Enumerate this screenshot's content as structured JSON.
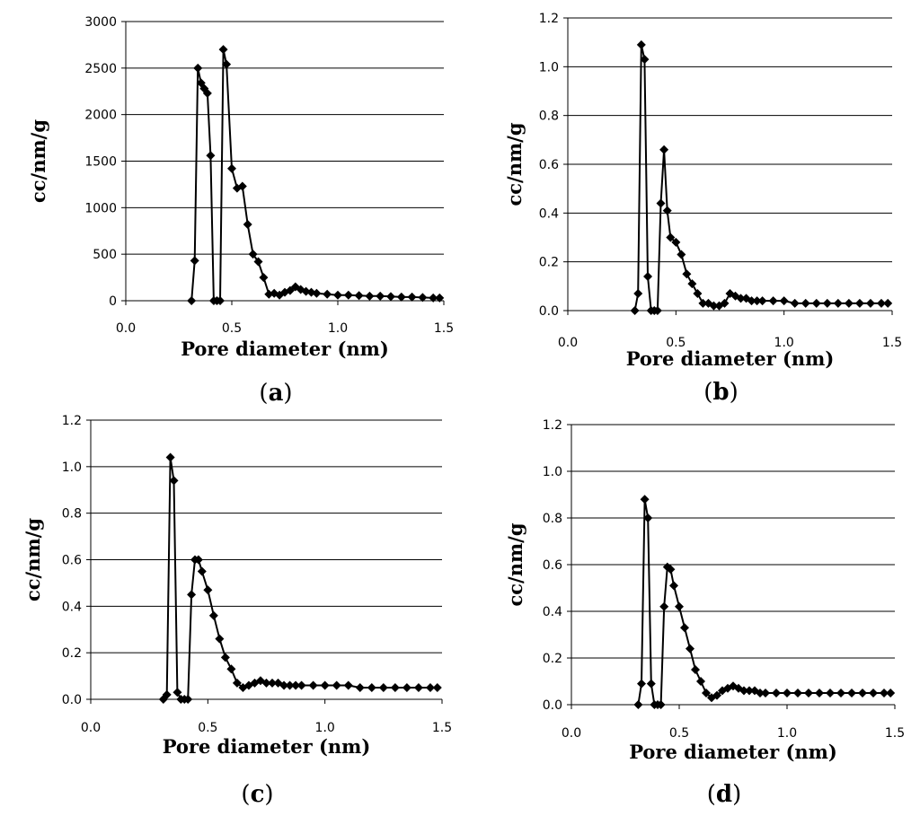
{
  "chart_data": [
    {
      "id": "a",
      "type": "line",
      "label": "a",
      "xlabel": "Pore diameter (nm)",
      "ylabel": "cc/nm/g",
      "xlim": [
        0,
        1.5
      ],
      "ylim": [
        0,
        3000
      ],
      "xticks": [
        "0.0",
        "0.5",
        "1.0",
        "1.5"
      ],
      "yticks": [
        "0",
        "500",
        "1000",
        "1500",
        "2000",
        "2500",
        "3000"
      ],
      "grid": "horizontal",
      "x": [
        0.31,
        0.325,
        0.34,
        0.355,
        0.37,
        0.385,
        0.4,
        0.415,
        0.43,
        0.445,
        0.46,
        0.475,
        0.5,
        0.525,
        0.55,
        0.575,
        0.6,
        0.625,
        0.65,
        0.675,
        0.7,
        0.725,
        0.75,
        0.775,
        0.8,
        0.825,
        0.85,
        0.875,
        0.9,
        0.95,
        1.0,
        1.05,
        1.1,
        1.15,
        1.2,
        1.25,
        1.3,
        1.35,
        1.4,
        1.45,
        1.48
      ],
      "y": [
        0,
        430,
        2500,
        2340,
        2280,
        2230,
        1560,
        0,
        0,
        0,
        2700,
        2540,
        1420,
        1210,
        1230,
        820,
        500,
        420,
        250,
        70,
        80,
        60,
        90,
        110,
        150,
        120,
        100,
        90,
        80,
        70,
        60,
        60,
        55,
        50,
        50,
        45,
        40,
        40,
        35,
        30,
        30
      ]
    },
    {
      "id": "b",
      "type": "line",
      "label": "b",
      "xlabel": "Pore diameter (nm)",
      "ylabel": "cc/nm/g",
      "xlim": [
        0,
        1.5
      ],
      "ylim": [
        0,
        1.2
      ],
      "xticks": [
        "0.0",
        "0.5",
        "1.0",
        "1.5"
      ],
      "yticks": [
        "0.0",
        "0.2",
        "0.4",
        "0.6",
        "0.8",
        "1.0",
        "1.2"
      ],
      "grid": "horizontal",
      "x": [
        0.31,
        0.325,
        0.34,
        0.355,
        0.37,
        0.385,
        0.4,
        0.415,
        0.43,
        0.445,
        0.46,
        0.475,
        0.5,
        0.525,
        0.55,
        0.575,
        0.6,
        0.625,
        0.65,
        0.675,
        0.7,
        0.725,
        0.75,
        0.775,
        0.8,
        0.825,
        0.85,
        0.875,
        0.9,
        0.95,
        1.0,
        1.05,
        1.1,
        1.15,
        1.2,
        1.25,
        1.3,
        1.35,
        1.4,
        1.45,
        1.48
      ],
      "y": [
        0.0,
        0.07,
        1.09,
        1.03,
        0.14,
        0.0,
        0.0,
        0.0,
        0.44,
        0.66,
        0.41,
        0.3,
        0.28,
        0.23,
        0.15,
        0.11,
        0.07,
        0.03,
        0.03,
        0.02,
        0.02,
        0.03,
        0.07,
        0.06,
        0.05,
        0.05,
        0.04,
        0.04,
        0.04,
        0.04,
        0.04,
        0.03,
        0.03,
        0.03,
        0.03,
        0.03,
        0.03,
        0.03,
        0.03,
        0.03,
        0.03
      ]
    },
    {
      "id": "c",
      "type": "line",
      "label": "c",
      "xlabel": "Pore diameter (nm)",
      "ylabel": "cc/nm/g",
      "xlim": [
        0,
        1.5
      ],
      "ylim": [
        0,
        1.2
      ],
      "xticks": [
        "0.0",
        "0.5",
        "1.0",
        "1.5"
      ],
      "yticks": [
        "0.0",
        "0.2",
        "0.4",
        "0.6",
        "0.8",
        "1.0",
        "1.2"
      ],
      "grid": "horizontal",
      "x": [
        0.31,
        0.325,
        0.34,
        0.355,
        0.37,
        0.385,
        0.4,
        0.415,
        0.43,
        0.445,
        0.46,
        0.475,
        0.5,
        0.525,
        0.55,
        0.575,
        0.6,
        0.625,
        0.65,
        0.675,
        0.7,
        0.725,
        0.75,
        0.775,
        0.8,
        0.825,
        0.85,
        0.875,
        0.9,
        0.95,
        1.0,
        1.05,
        1.1,
        1.15,
        1.2,
        1.25,
        1.3,
        1.35,
        1.4,
        1.45,
        1.48
      ],
      "y": [
        0.0,
        0.02,
        1.04,
        0.94,
        0.03,
        0.0,
        0.0,
        0.0,
        0.45,
        0.6,
        0.6,
        0.55,
        0.47,
        0.36,
        0.26,
        0.18,
        0.13,
        0.07,
        0.05,
        0.06,
        0.07,
        0.08,
        0.07,
        0.07,
        0.07,
        0.06,
        0.06,
        0.06,
        0.06,
        0.06,
        0.06,
        0.06,
        0.06,
        0.05,
        0.05,
        0.05,
        0.05,
        0.05,
        0.05,
        0.05,
        0.05
      ]
    },
    {
      "id": "d",
      "type": "line",
      "label": "d",
      "xlabel": "Pore diameter (nm)",
      "ylabel": "cc/nm/g",
      "xlim": [
        0,
        1.5
      ],
      "ylim": [
        0,
        1.2
      ],
      "xticks": [
        "0.0",
        "0.5",
        "1.0",
        "1.5"
      ],
      "yticks": [
        "0.0",
        "0.2",
        "0.4",
        "0.6",
        "0.8",
        "1.0",
        "1.2"
      ],
      "grid": "horizontal",
      "x": [
        0.31,
        0.325,
        0.34,
        0.355,
        0.37,
        0.385,
        0.4,
        0.415,
        0.43,
        0.445,
        0.46,
        0.475,
        0.5,
        0.525,
        0.55,
        0.575,
        0.6,
        0.625,
        0.65,
        0.675,
        0.7,
        0.725,
        0.75,
        0.775,
        0.8,
        0.825,
        0.85,
        0.875,
        0.9,
        0.95,
        1.0,
        1.05,
        1.1,
        1.15,
        1.2,
        1.25,
        1.3,
        1.35,
        1.4,
        1.45,
        1.48
      ],
      "y": [
        0.0,
        0.09,
        0.88,
        0.8,
        0.09,
        0.0,
        0.0,
        0.0,
        0.42,
        0.59,
        0.58,
        0.51,
        0.42,
        0.33,
        0.24,
        0.15,
        0.1,
        0.05,
        0.03,
        0.04,
        0.06,
        0.07,
        0.08,
        0.07,
        0.06,
        0.06,
        0.06,
        0.05,
        0.05,
        0.05,
        0.05,
        0.05,
        0.05,
        0.05,
        0.05,
        0.05,
        0.05,
        0.05,
        0.05,
        0.05,
        0.05
      ]
    }
  ]
}
